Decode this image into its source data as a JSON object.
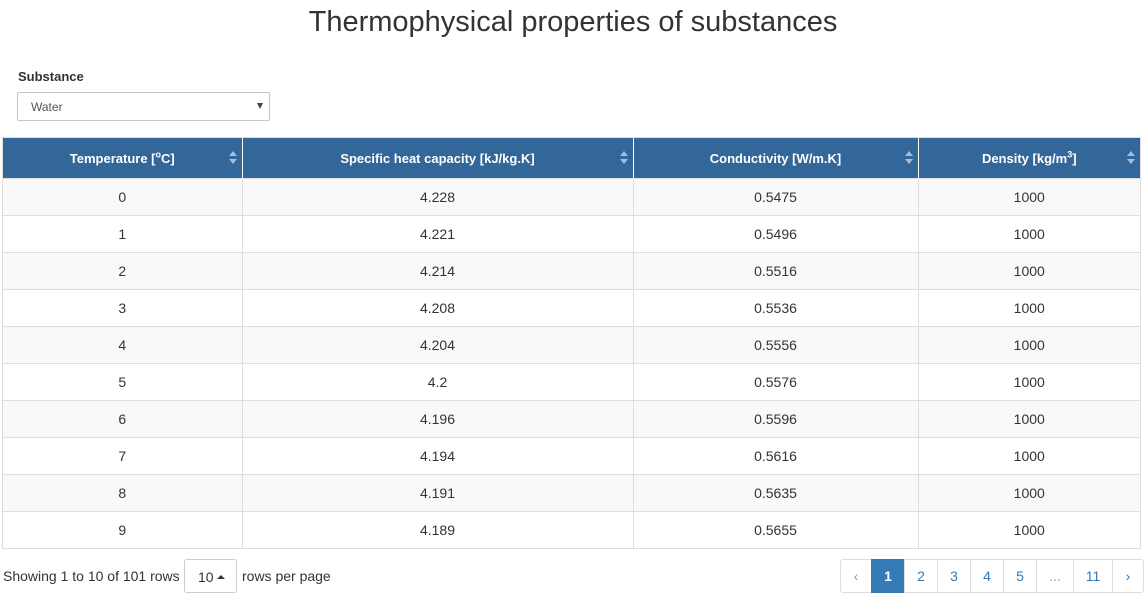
{
  "title": "Thermophysical properties of substances",
  "substance": {
    "label": "Substance",
    "selected": "Water"
  },
  "table": {
    "headers": [
      {
        "text": "Temperature [",
        "sup": "o",
        "tail": "C]"
      },
      {
        "text": "Specific heat capacity [kJ/kg.K]",
        "sup": "",
        "tail": ""
      },
      {
        "text": "Conductivity [W/m.K]",
        "sup": "",
        "tail": ""
      },
      {
        "text": "Density [kg/m",
        "sup": "3",
        "tail": "]"
      }
    ],
    "rows": [
      [
        "0",
        "4.228",
        "0.5475",
        "1000"
      ],
      [
        "1",
        "4.221",
        "0.5496",
        "1000"
      ],
      [
        "2",
        "4.214",
        "0.5516",
        "1000"
      ],
      [
        "3",
        "4.208",
        "0.5536",
        "1000"
      ],
      [
        "4",
        "4.204",
        "0.5556",
        "1000"
      ],
      [
        "5",
        "4.2",
        "0.5576",
        "1000"
      ],
      [
        "6",
        "4.196",
        "0.5596",
        "1000"
      ],
      [
        "7",
        "4.194",
        "0.5616",
        "1000"
      ],
      [
        "8",
        "4.191",
        "0.5635",
        "1000"
      ],
      [
        "9",
        "4.189",
        "0.5655",
        "1000"
      ]
    ]
  },
  "footer": {
    "showing": "Showing 1 to 10 of 101 rows",
    "page_size": "10",
    "rows_per_page": "rows per page"
  },
  "pagination": {
    "prev": "‹",
    "pages": [
      "1",
      "2",
      "3",
      "4",
      "5",
      "...",
      "11"
    ],
    "active_page": "1",
    "next": "›"
  },
  "colors": {
    "header_bg": "#336699",
    "active_page": "#337ab7",
    "link": "#337ab7"
  }
}
